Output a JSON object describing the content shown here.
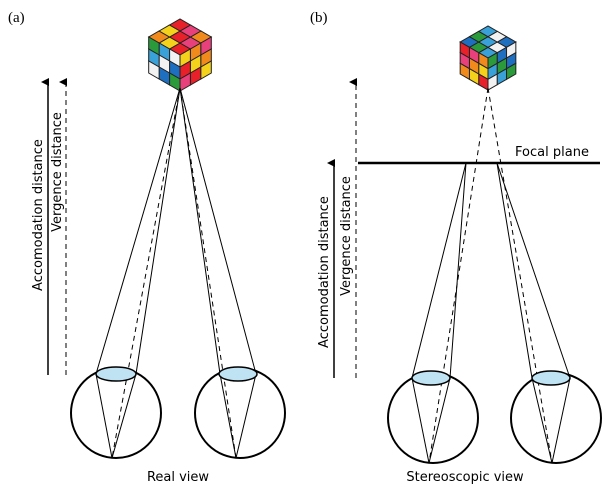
{
  "panels": [
    {
      "label": "(a)",
      "accommodation_label": "Accomodation distance",
      "vergence_label": "Vergence distance",
      "caption": "Real view"
    },
    {
      "label": "(b)",
      "accommodation_label": "Accomodation distance",
      "vergence_label": "Vergence distance",
      "caption": "Stereoscopic view",
      "focal_plane_label": "Focal plane"
    }
  ]
}
